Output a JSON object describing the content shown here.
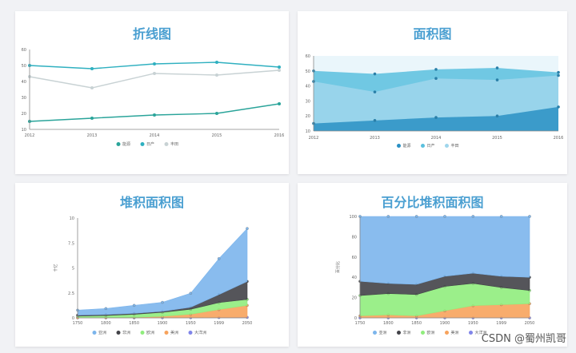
{
  "chart_data": [
    {
      "type": "line",
      "title": "折线图",
      "categories": [
        "2012",
        "2013",
        "2014",
        "2015",
        "2016"
      ],
      "ylim": [
        10,
        60
      ],
      "yticks": [
        10,
        20,
        30,
        40,
        50,
        60
      ],
      "series": [
        {
          "name": "能源",
          "color": "#2aa49a",
          "values": [
            15,
            17,
            19,
            20,
            26
          ]
        },
        {
          "name": "日产",
          "color": "#2fb0c0",
          "values": [
            50,
            48,
            51,
            52,
            49
          ]
        },
        {
          "name": "丰田",
          "color": "#c8d2d4",
          "values": [
            43,
            36,
            45,
            44,
            47
          ]
        }
      ],
      "legend": "bottom"
    },
    {
      "type": "area",
      "title": "面积图",
      "categories": [
        "2012",
        "2013",
        "2014",
        "2015",
        "2016"
      ],
      "ylim": [
        10,
        60
      ],
      "yticks": [
        10,
        20,
        30,
        40,
        50,
        60
      ],
      "series": [
        {
          "name": "能源",
          "color": "#2a90c4",
          "values": [
            15,
            17,
            19,
            20,
            26
          ]
        },
        {
          "name": "日产",
          "color": "#5bc0de",
          "values": [
            50,
            48,
            51,
            52,
            49
          ]
        },
        {
          "name": "丰田",
          "color": "#9fd6ec",
          "values": [
            43,
            36,
            45,
            44,
            47
          ]
        }
      ],
      "legend": "bottom"
    },
    {
      "type": "area",
      "stacked": true,
      "title": "堆积面积图",
      "ylabel": "十亿",
      "categories": [
        "1750",
        "1800",
        "1850",
        "1900",
        "1950",
        "1999",
        "2050"
      ],
      "ylim": [
        0,
        10
      ],
      "yticks": [
        0,
        2.5,
        5,
        7.5,
        10
      ],
      "series": [
        {
          "name": "亚洲",
          "color": "#7cb5ec",
          "values": [
            0.5,
            0.6,
            0.8,
            0.9,
            1.4,
            3.6,
            5.3
          ]
        },
        {
          "name": "非洲",
          "color": "#434348",
          "values": [
            0.1,
            0.1,
            0.1,
            0.1,
            0.2,
            0.8,
            1.8
          ]
        },
        {
          "name": "欧洲",
          "color": "#90ed7d",
          "values": [
            0.15,
            0.2,
            0.3,
            0.4,
            0.5,
            0.7,
            0.6
          ]
        },
        {
          "name": "美洲",
          "color": "#f7a35c",
          "values": [
            0.02,
            0.03,
            0.05,
            0.15,
            0.35,
            0.8,
            1.2
          ]
        },
        {
          "name": "大洋洲",
          "color": "#8085e9",
          "values": [
            0.002,
            0.002,
            0.002,
            0.006,
            0.013,
            0.03,
            0.05
          ]
        }
      ],
      "legend": "bottom"
    },
    {
      "type": "area",
      "stacked": "percent",
      "title": "百分比堆积面积图",
      "ylabel": "百分比",
      "categories": [
        "1750",
        "1800",
        "1850",
        "1900",
        "1950",
        "1999",
        "2050"
      ],
      "ylim": [
        0,
        100
      ],
      "yticks": [
        0,
        20,
        40,
        60,
        80,
        100
      ],
      "series": [
        {
          "name": "亚洲",
          "color": "#7cb5ec",
          "values": [
            64,
            66,
            67,
            59,
            56,
            59,
            60
          ]
        },
        {
          "name": "非洲",
          "color": "#434348",
          "values": [
            14,
            10,
            10,
            10,
            10,
            11,
            13
          ]
        },
        {
          "name": "欧洲",
          "color": "#90ed7d",
          "values": [
            20,
            21,
            21,
            24,
            22,
            17,
            13
          ]
        },
        {
          "name": "美洲",
          "color": "#f7a35c",
          "values": [
            2,
            3,
            2,
            7,
            12,
            13,
            14
          ]
        },
        {
          "name": "大洋洲",
          "color": "#8085e9",
          "values": [
            0,
            0,
            0,
            0,
            0,
            0,
            0
          ]
        }
      ],
      "legend": "bottom"
    }
  ],
  "watermark": "CSDN @蜀州凯哥"
}
